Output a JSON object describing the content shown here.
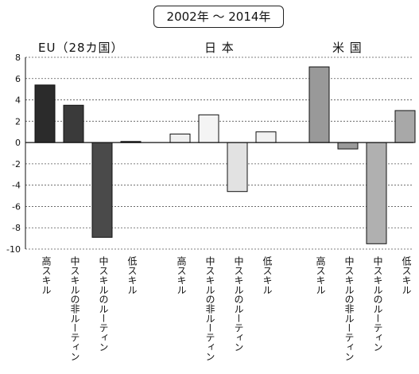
{
  "chart_data": {
    "type": "bar",
    "title": "2002年 ～ 2014年",
    "ylim": [
      -10,
      8
    ],
    "yticks": [
      "8",
      "6",
      "4",
      "2",
      "0",
      "-2",
      "-4",
      "-6",
      "-8",
      "-10"
    ],
    "grid": true,
    "groups": [
      {
        "name": "EU（28カ国）",
        "categories": [
          "高スキル",
          "中スキルの非ルーティン",
          "中スキルのルーティン",
          "低スキル"
        ],
        "values": [
          5.4,
          3.5,
          -8.9,
          0.1
        ],
        "colors": [
          "#2b2b2b",
          "#3a3a3a",
          "#4a4a4a",
          "#222222"
        ]
      },
      {
        "name": "日 本",
        "categories": [
          "高スキル",
          "中スキルの非ルーティン",
          "中スキルのルーティン",
          "低スキル"
        ],
        "values": [
          0.8,
          2.6,
          -4.6,
          1.0
        ],
        "colors": [
          "#efefef",
          "#f4f4f4",
          "#e2e2e2",
          "#f2f2f2"
        ]
      },
      {
        "name": "米 国",
        "categories": [
          "高スキル",
          "中スキルの非ルーティン",
          "中スキルのルーティン",
          "低スキル"
        ],
        "values": [
          7.1,
          -0.6,
          -9.5,
          3.0
        ],
        "colors": [
          "#999999",
          "#9a9a9a",
          "#b0b0b0",
          "#a8a8a8"
        ]
      }
    ]
  }
}
